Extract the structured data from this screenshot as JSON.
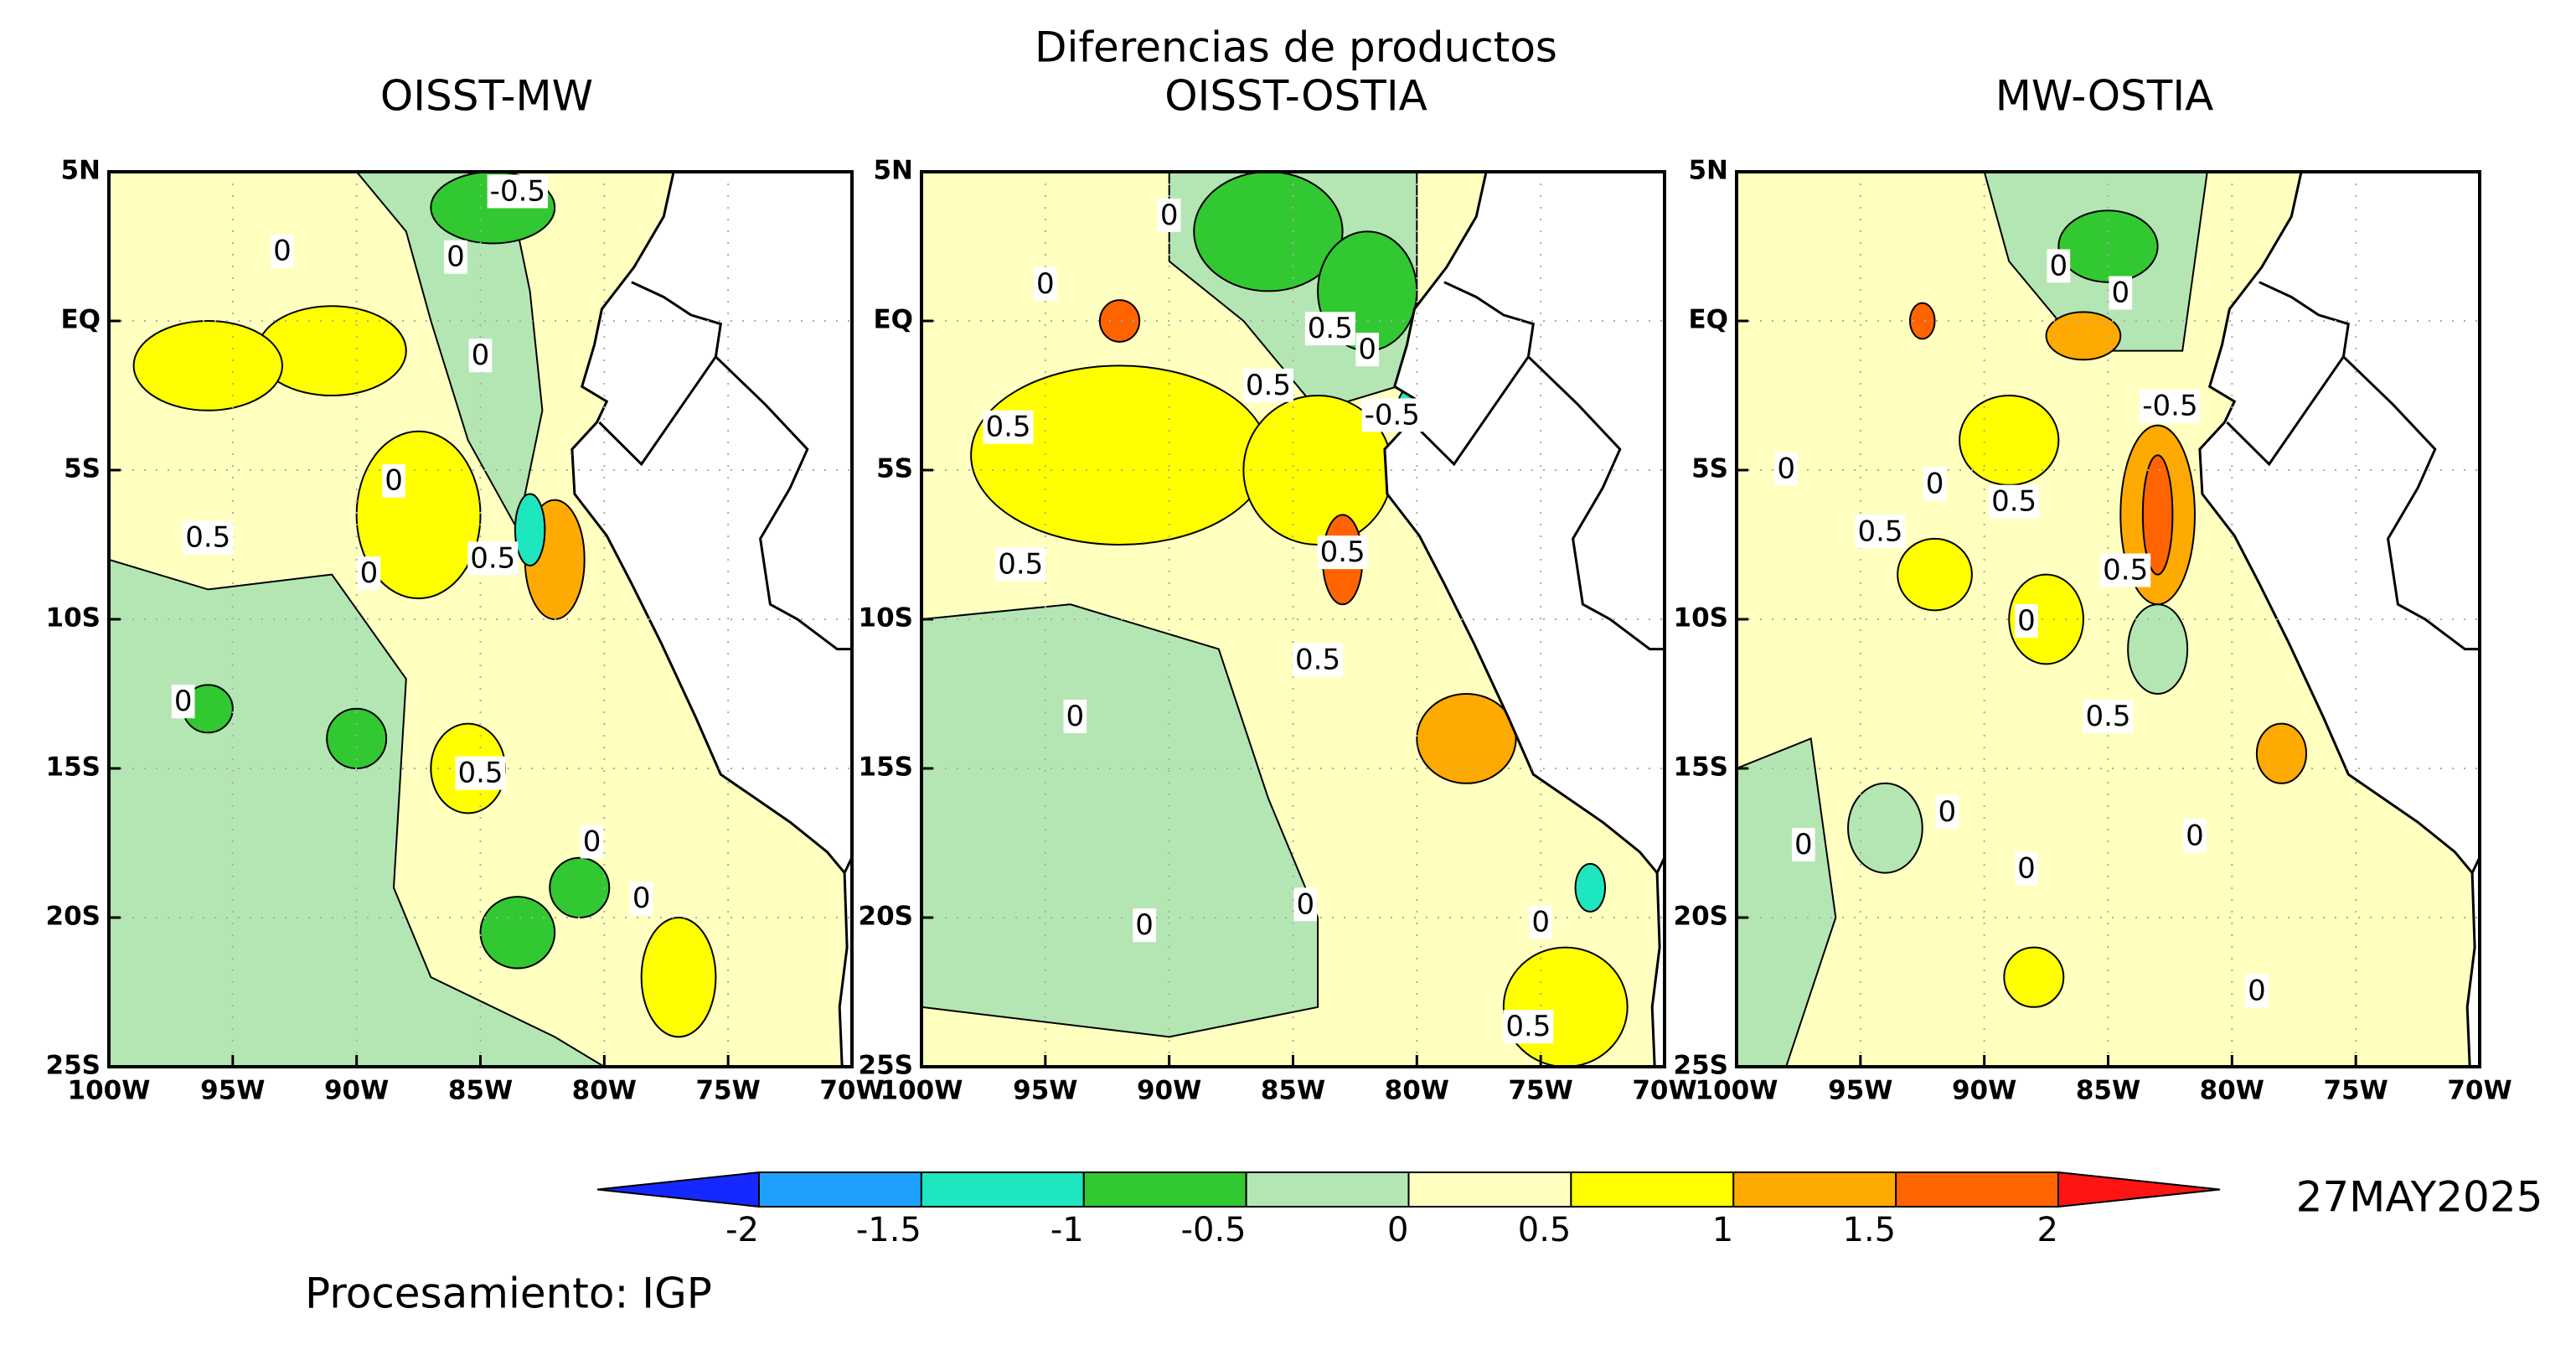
{
  "title": "Diferencias de productos",
  "panels": [
    {
      "title": "OISST-MW",
      "contour_labels": [
        "-0.5",
        "0",
        "0",
        "0",
        "0.5",
        "0",
        "0.5",
        "0",
        "0.5",
        "0",
        "0",
        "0"
      ]
    },
    {
      "title": "OISST-OSTIA",
      "contour_labels": [
        "0",
        "0",
        "0.5",
        "0",
        "0.5",
        "-0.5",
        "0.5",
        "0.5",
        "0.5",
        "0.5",
        "0",
        "0",
        "0",
        "0",
        "0.5"
      ]
    },
    {
      "title": "MW-OSTIA",
      "contour_labels": [
        "0",
        "0",
        "-0.5",
        "0",
        "0",
        "0.5",
        "0.5",
        "0.5",
        "0",
        "0.5",
        "0",
        "0",
        "0",
        "0",
        "0"
      ]
    }
  ],
  "lon_ticks": [
    "100W",
    "95W",
    "90W",
    "85W",
    "80W",
    "75W",
    "70W"
  ],
  "lat_ticks": [
    "5N",
    "EQ",
    "5S",
    "10S",
    "15S",
    "20S",
    "25S"
  ],
  "colorbar": {
    "levels": [
      -2,
      -1.5,
      -1,
      -0.5,
      0,
      0.5,
      1,
      1.5,
      2
    ],
    "colors": [
      "#1428ff",
      "#1ea0ff",
      "#1ee6be",
      "#32c832",
      "#b4e6b4",
      "#ffffc0",
      "#ffff00",
      "#ffaa00",
      "#ff6400",
      "#ff1414"
    ]
  },
  "date": "27MAY2025",
  "credit": "Procesamiento: IGP"
}
